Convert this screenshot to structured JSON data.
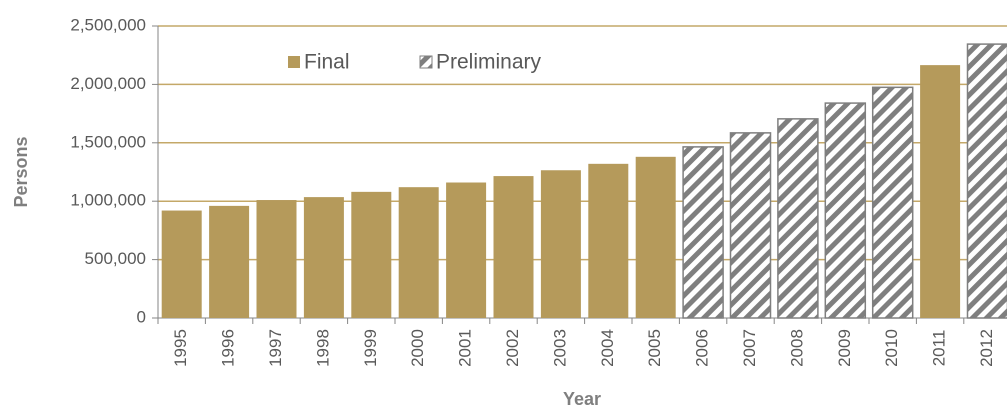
{
  "chart_data": {
    "type": "bar",
    "xlabel": "Year",
    "ylabel": "Persons",
    "categories": [
      "1995",
      "1996",
      "1997",
      "1998",
      "1999",
      "2000",
      "2001",
      "2002",
      "2003",
      "2004",
      "2005",
      "2006",
      "2007",
      "2008",
      "2009",
      "2010",
      "2011",
      "2012"
    ],
    "series": [
      {
        "name": "Final",
        "color": "#b59a5b",
        "values": [
          920000,
          960000,
          1010000,
          1035000,
          1080000,
          1120000,
          1160000,
          1215000,
          1265000,
          1320000,
          1380000,
          null,
          null,
          null,
          null,
          null,
          2165000,
          null
        ]
      },
      {
        "name": "Preliminary",
        "color": "#7f7f7f",
        "pattern": "hatch",
        "values": [
          null,
          null,
          null,
          null,
          null,
          null,
          null,
          null,
          null,
          null,
          null,
          1465000,
          1585000,
          1705000,
          1840000,
          1975000,
          null,
          2345000
        ]
      }
    ],
    "ylim": [
      0,
      2500000
    ],
    "yticks": [
      0,
      {
        "value": 500000,
        "label": "500,000"
      },
      {
        "value": 1000000,
        "label": "1,000,000"
      },
      {
        "value": 1500000,
        "label": "1,500,000"
      },
      {
        "value": 2000000,
        "label": "2,000,000"
      },
      {
        "value": 2500000,
        "label": "2,500,000"
      }
    ],
    "grid": true,
    "grid_color": "#c4a868",
    "legend": "top-left"
  }
}
